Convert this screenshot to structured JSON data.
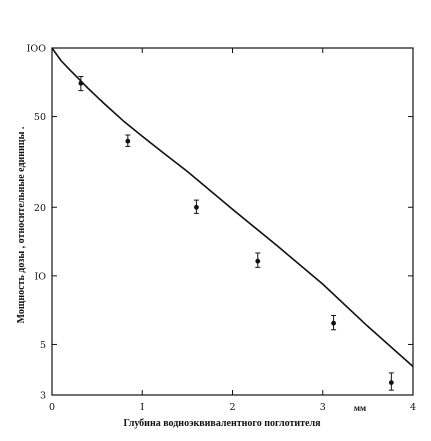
{
  "chart_data": {
    "type": "scatter",
    "title": "",
    "xlabel": "Глубина водноэквивалентного поглотителя",
    "xunit": "мм",
    "ylabel": "Мощность дозы , относительные единицы .",
    "xlim": [
      0,
      4
    ],
    "ylim": [
      3,
      100
    ],
    "yscale": "log",
    "grid": false,
    "x_ticks": [
      0,
      1,
      2,
      3,
      4
    ],
    "x_tick_labels": [
      "0",
      "I",
      "2",
      "3",
      "4"
    ],
    "y_ticks": [
      3,
      5,
      10,
      20,
      50,
      100
    ],
    "y_tick_labels": [
      "3",
      "5",
      "IO",
      "20",
      "50",
      "IOO"
    ],
    "series": [
      {
        "kind": "points-with-error-bars",
        "points": [
          {
            "x": 0.32,
            "y": 70,
            "err_low": 65,
            "err_high": 75
          },
          {
            "x": 0.84,
            "y": 39,
            "err_low": 37,
            "err_high": 41.5
          },
          {
            "x": 1.6,
            "y": 20,
            "err_low": 18.8,
            "err_high": 21.5
          },
          {
            "x": 2.28,
            "y": 11.6,
            "err_low": 10.9,
            "err_high": 12.6
          },
          {
            "x": 3.12,
            "y": 6.2,
            "err_low": 5.8,
            "err_high": 6.7
          },
          {
            "x": 3.76,
            "y": 3.4,
            "err_low": 3.15,
            "err_high": 3.75
          }
        ]
      },
      {
        "kind": "fit-curve",
        "x": [
          0,
          0.1,
          0.2,
          0.3,
          0.4,
          0.5,
          0.6,
          0.8,
          1.0,
          1.2,
          1.5,
          2.0,
          2.5,
          3.0,
          3.5,
          4.0
        ],
        "y": [
          100,
          88,
          80,
          73,
          66.5,
          61,
          56,
          47.5,
          41,
          35.5,
          28.7,
          19.6,
          13.5,
          9.2,
          6.0,
          4.0
        ]
      }
    ]
  }
}
